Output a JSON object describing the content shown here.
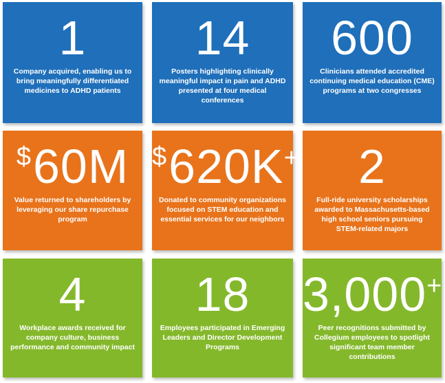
{
  "tiles": [
    {
      "value": "1",
      "caption": "Company acquired, enabling us to bring meaningfully differentiated medicines to ADHD patients",
      "color": "#1f6fba"
    },
    {
      "value": "14",
      "caption": "Posters highlighting clinically meaningful impact in pain and ADHD presented at four medical conferences",
      "color": "#1f6fba"
    },
    {
      "value": "600",
      "caption": "Clinicians attended accredited continuing medical education (CME) programs at two congresses",
      "color": "#1f6fba"
    },
    {
      "prefix": "$",
      "value": "60M",
      "caption": "Value returned to shareholders by leveraging our share repurchase program",
      "color": "#e8731b"
    },
    {
      "prefix": "$",
      "value": "620K",
      "suffix": "+",
      "caption": "Donated to community organizations focused on STEM education and essential services for our neighbors",
      "color": "#e8731b"
    },
    {
      "value": "2",
      "caption": "Full-ride university scholarships awarded to Massachusetts-based high school seniors pursuing STEM-related majors",
      "color": "#e8731b"
    },
    {
      "value": "4",
      "caption": "Workplace awards received for company culture, business performance and community impact",
      "color": "#84b82b"
    },
    {
      "value": "18",
      "caption": "Employees participated in Emerging Leaders and Director Development Programs",
      "color": "#84b82b"
    },
    {
      "value": "3,000",
      "suffix": "+",
      "caption": "Peer recognitions submitted by Collegium employees to spotlight significant team member contributions",
      "color": "#84b82b"
    }
  ]
}
